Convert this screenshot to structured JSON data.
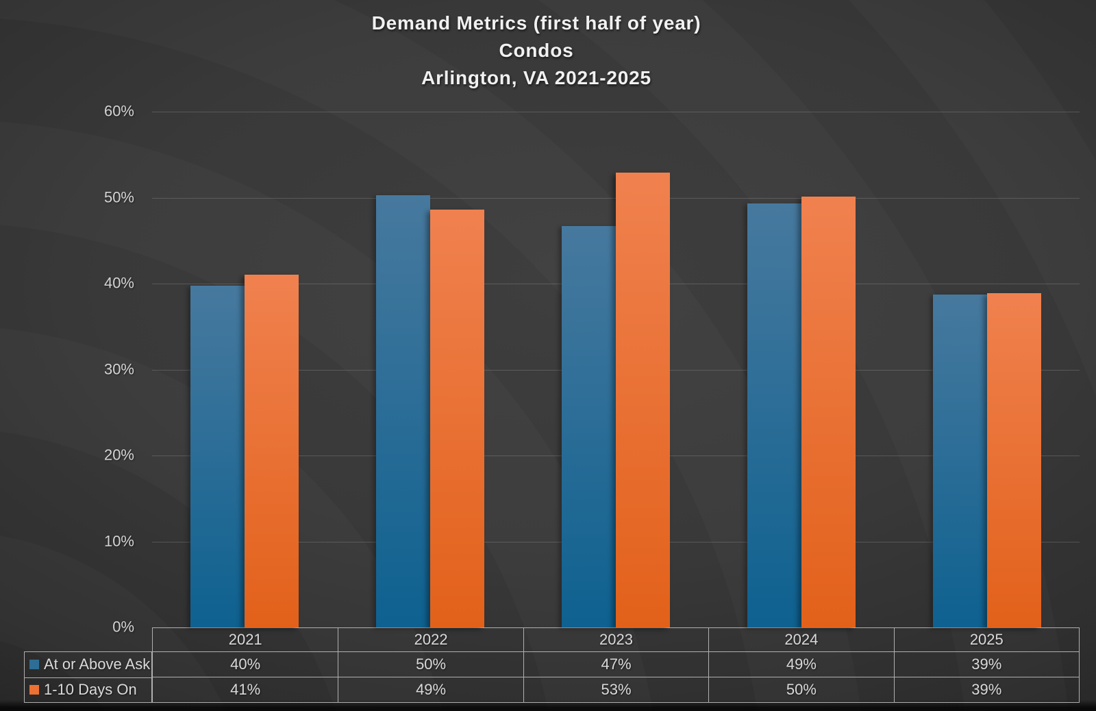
{
  "title": {
    "line1": "Demand Metrics (first half of year)",
    "line2": "Condos",
    "line3": "Arlington, VA 2021-2025"
  },
  "colors": {
    "background": "#3a3a3a",
    "title_text": "#f1f1f1",
    "axis_text": "#d4d4d4",
    "table_text": "#dadada",
    "table_border": "#b0b0b0",
    "gridline": "rgba(255,255,255,0.16)",
    "series_blue": "#2e6e96",
    "series_orange": "#ed7132"
  },
  "chart_data": {
    "type": "bar",
    "title": "Demand Metrics (first half of year) Condos Arlington, VA 2021-2025",
    "categories": [
      "2021",
      "2022",
      "2023",
      "2024",
      "2025"
    ],
    "series": [
      {
        "name": "At or Above Ask",
        "color": "#2e6e96",
        "gradient": [
          "#47799e",
          "#0e6190"
        ],
        "values": [
          40,
          50,
          47,
          49,
          39
        ],
        "table_labels": [
          "40%",
          "50%",
          "47%",
          "49%",
          "39%"
        ],
        "drawn_pct": [
          39.8,
          50.3,
          46.7,
          49.3,
          38.7
        ]
      },
      {
        "name": "1-10 Days On",
        "color": "#ed7132",
        "gradient": [
          "#f0814f",
          "#e2611a"
        ],
        "values": [
          41,
          49,
          53,
          50,
          39
        ],
        "table_labels": [
          "41%",
          "49%",
          "53%",
          "50%",
          "39%"
        ],
        "drawn_pct": [
          41.0,
          48.6,
          52.9,
          50.1,
          38.9
        ]
      }
    ],
    "y_axis": {
      "min": 0,
      "max": 60,
      "step": 10,
      "tick_labels": [
        "0%",
        "10%",
        "20%",
        "30%",
        "40%",
        "50%",
        "60%"
      ]
    },
    "grid": true,
    "legend_position": "table-left"
  }
}
